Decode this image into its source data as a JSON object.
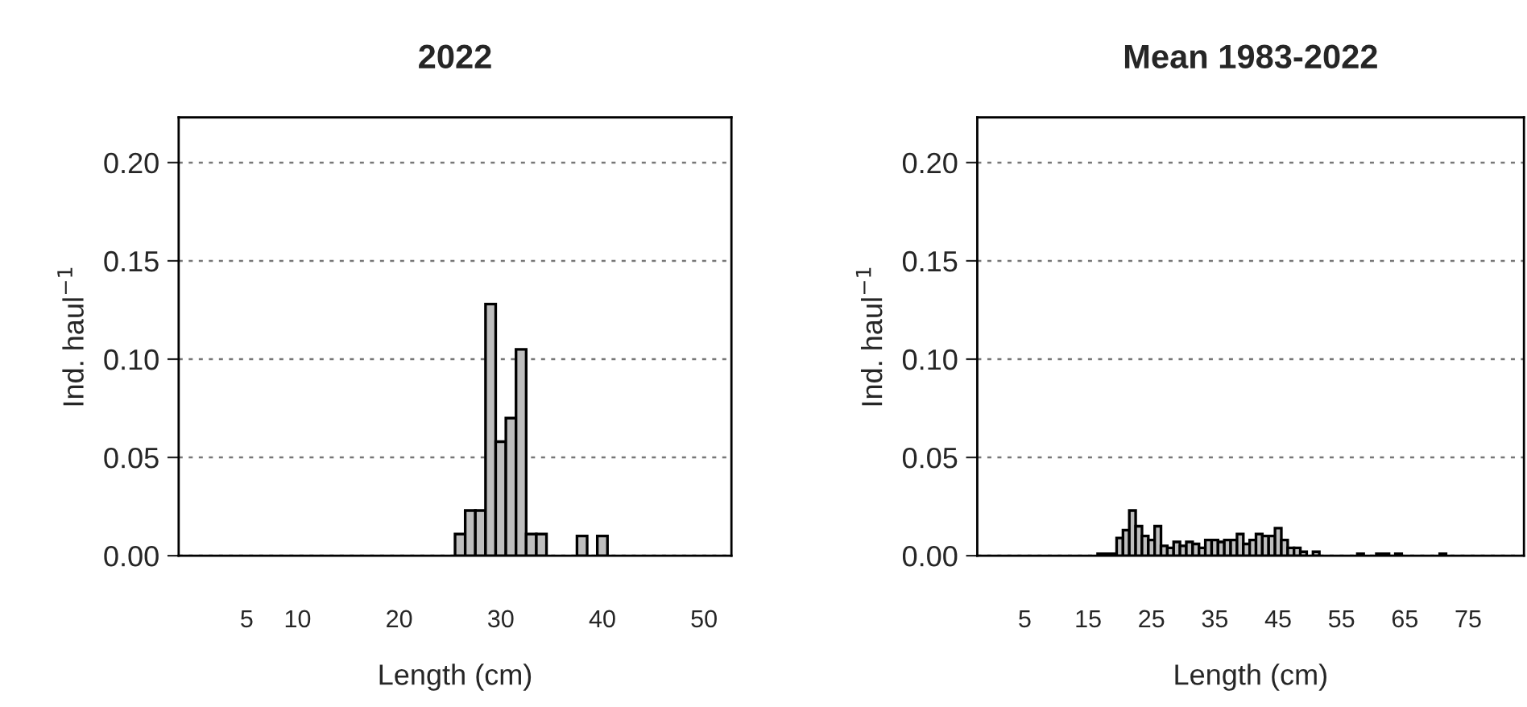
{
  "chart_data": [
    {
      "type": "histogram",
      "title": "2022",
      "xlabel": "Length (cm)",
      "ylabel": "Ind. haul$^{−1}$",
      "color": "#bebebe",
      "bins": [
        25.5,
        26.5,
        27.5,
        28.5,
        29.5,
        30.5,
        31.5,
        32.5,
        33.5,
        34.5,
        35.5,
        36.5,
        37.5,
        38.5,
        39.5,
        40.5
      ],
      "values": [
        0.011,
        0.023,
        0.023,
        0.128,
        0.058,
        0.07,
        0.105,
        0.011,
        0.011,
        null,
        null,
        null,
        0.01,
        null,
        0.01
      ],
      "xlim": [
        -1.7,
        52.7
      ],
      "xticks": [
        5,
        10,
        20,
        30,
        40,
        50
      ],
      "ylim": [
        0,
        0.223
      ],
      "yticks": [
        {
          "value": 0,
          "label": "0.00"
        },
        {
          "value": 0.05,
          "label": "0.05"
        },
        {
          "value": 0.1,
          "label": "0.10"
        },
        {
          "value": 0.15,
          "label": "0.15"
        },
        {
          "value": 0.2,
          "label": "0.20"
        }
      ],
      "grid": "y"
    },
    {
      "type": "histogram",
      "title": "Mean 1983-2022",
      "xlabel": "Length (cm)",
      "ylabel": "Ind. haul$^{−1}$",
      "color": "#bebebe",
      "bins": [
        16.5,
        17.5,
        18.5,
        19.5,
        20.5,
        21.5,
        22.5,
        23.5,
        24.5,
        25.5,
        26.5,
        27.5,
        28.5,
        29.5,
        30.5,
        31.5,
        32.5,
        33.5,
        34.5,
        35.5,
        36.5,
        37.5,
        38.5,
        39.5,
        40.5,
        41.5,
        42.5,
        43.5,
        44.5,
        45.5,
        46.5,
        47.5,
        48.5,
        49.5,
        50.5,
        51.5,
        52.5,
        53.5,
        54.5,
        55.5,
        56.5,
        57.5,
        58.5,
        59.5,
        60.5,
        61.5,
        62.5,
        63.5,
        64.5,
        65.5,
        66.5,
        67.5,
        68.5,
        69.5,
        70.5,
        71.5,
        72.5
      ],
      "values": [
        0.001,
        0.001,
        0.001,
        0.009,
        0.013,
        0.023,
        0.015,
        0.01,
        0.008,
        0.015,
        0.005,
        0.004,
        0.007,
        0.005,
        0.007,
        0.006,
        0.004,
        0.008,
        0.008,
        0.007,
        0.008,
        0.008,
        0.011,
        0.006,
        0.008,
        0.011,
        0.01,
        0.01,
        0.014,
        0.008,
        0.004,
        0.004,
        0.002,
        null,
        0.002,
        null,
        null,
        null,
        null,
        null,
        null,
        0.001,
        null,
        null,
        0.001,
        0.001,
        null,
        0.001,
        null,
        null,
        null,
        null,
        null,
        null,
        0.001,
        null
      ],
      "xlim": [
        -2.5,
        83.8
      ],
      "xticks": [
        5,
        15,
        25,
        35,
        45,
        55,
        65,
        75
      ],
      "ylim": [
        0,
        0.223
      ],
      "yticks": [
        {
          "value": 0,
          "label": "0.00"
        },
        {
          "value": 0.05,
          "label": "0.05"
        },
        {
          "value": 0.1,
          "label": "0.10"
        },
        {
          "value": 0.15,
          "label": "0.15"
        },
        {
          "value": 0.2,
          "label": "0.20"
        }
      ],
      "grid": "y"
    }
  ]
}
